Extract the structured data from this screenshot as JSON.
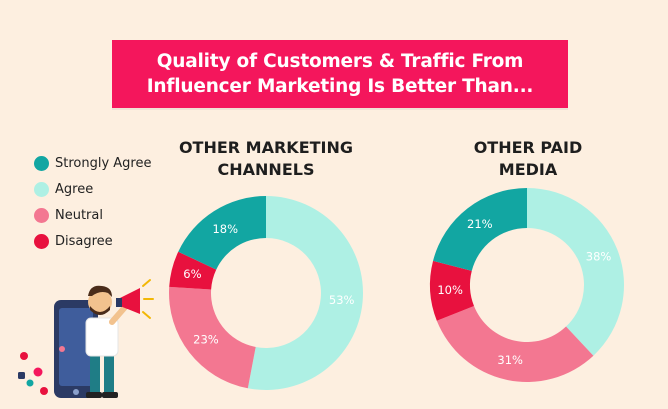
{
  "title": {
    "line1": "Quality of Customers & Traffic From",
    "line2": "Influencer Marketing Is Better Than..."
  },
  "legend": [
    {
      "label": "Strongly Agree",
      "color": "#12a6a2"
    },
    {
      "label": "Agree",
      "color": "#aef0e4"
    },
    {
      "label": "Neutral",
      "color": "#f37791"
    },
    {
      "label": "Disagree",
      "color": "#e8113e"
    }
  ],
  "colors": {
    "banner": "#f4165c",
    "background": "#fdefe0"
  },
  "illustration": "man-with-megaphone-and-phone",
  "chart_data": [
    {
      "type": "pie",
      "style": "donut",
      "title_lines": [
        "OTHER MARKETING",
        "CHANNELS"
      ],
      "categories": [
        "Strongly Agree",
        "Agree",
        "Neutral",
        "Disagree"
      ],
      "values": [
        18,
        53,
        23,
        6
      ],
      "labels": [
        "18%",
        "53%",
        "23%",
        "6%"
      ]
    },
    {
      "type": "pie",
      "style": "donut",
      "title_lines": [
        "OTHER PAID",
        "MEDIA"
      ],
      "categories": [
        "Strongly Agree",
        "Agree",
        "Neutral",
        "Disagree"
      ],
      "values": [
        21,
        38,
        31,
        10
      ],
      "labels": [
        "21%",
        "38%",
        "31%",
        "10%"
      ]
    }
  ]
}
